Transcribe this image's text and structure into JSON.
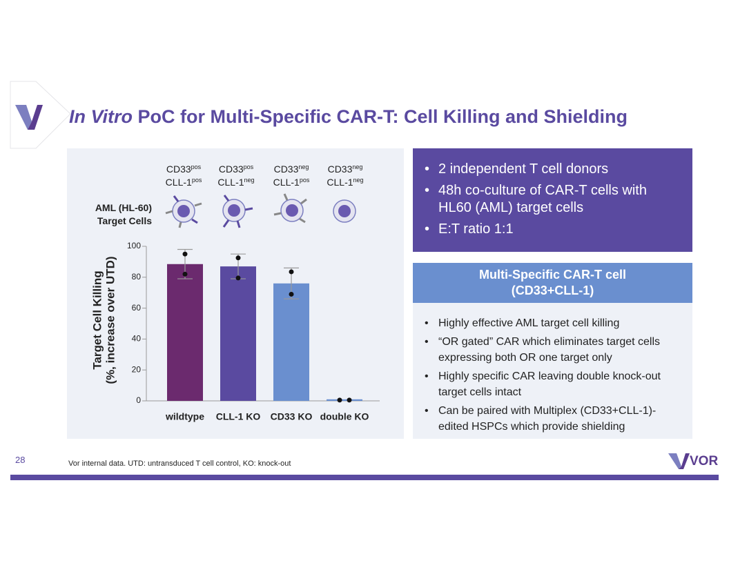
{
  "title_italic": "In Vitro",
  "title_rest": "PoC for Multi-Specific CAR-T: Cell Killing and Shielding",
  "slide_number": "28",
  "footnote": "Vor internal data. UTD: untransduced T cell control, KO: knock-out",
  "logo_text": "VOR",
  "cell_row_label": [
    "AML (HL-60)",
    "Target Cells"
  ],
  "cell_headers": [
    {
      "cd33": "CD33",
      "cd33_sup": "pos",
      "cll": "CLL-1",
      "cll_sup": "pos"
    },
    {
      "cd33": "CD33",
      "cd33_sup": "pos",
      "cll": "CLL-1",
      "cll_sup": "neg"
    },
    {
      "cd33": "CD33",
      "cd33_sup": "neg",
      "cll": "CLL-1",
      "cll_sup": "pos"
    },
    {
      "cd33": "CD33",
      "cd33_sup": "neg",
      "cll": "CLL-1",
      "cll_sup": "neg"
    }
  ],
  "chart_data": {
    "type": "bar",
    "y_label": [
      "Target Cell Killing",
      "(%, increase over UTD)"
    ],
    "categories": [
      "wildtype",
      "CLL-1 KO",
      "CD33 KO",
      "double KO"
    ],
    "values": [
      88.5,
      87,
      76,
      1
    ],
    "errors": [
      9.5,
      8,
      10,
      null
    ],
    "points": [
      [
        95,
        82
      ],
      [
        92.5,
        79.5
      ],
      [
        83.5,
        69
      ],
      [
        0.5,
        0.5
      ]
    ],
    "colors": [
      "#6b2a6e",
      "#5a4aa0",
      "#6a8fcf",
      "#6a8fcf"
    ],
    "ylim": [
      0,
      100
    ],
    "yticks": [
      0,
      20,
      40,
      60,
      80,
      100
    ]
  },
  "summary_bullets": [
    "2 independent T cell donors",
    "48h co-culture of CAR-T cells with HL60 (AML) target cells",
    "E:T ratio 1:1"
  ],
  "box_title": [
    "Multi-Specific CAR-T cell",
    "(CD33+CLL-1)"
  ],
  "box_bullets": [
    "Highly effective AML target cell killing",
    "“OR gated” CAR which eliminates target cells expressing both OR one target only",
    "Highly specific CAR leaving double knock-out target cells intact",
    "Can be paired with Multiplex (CD33+CLL-1)-edited HSPCs which provide shielding"
  ]
}
